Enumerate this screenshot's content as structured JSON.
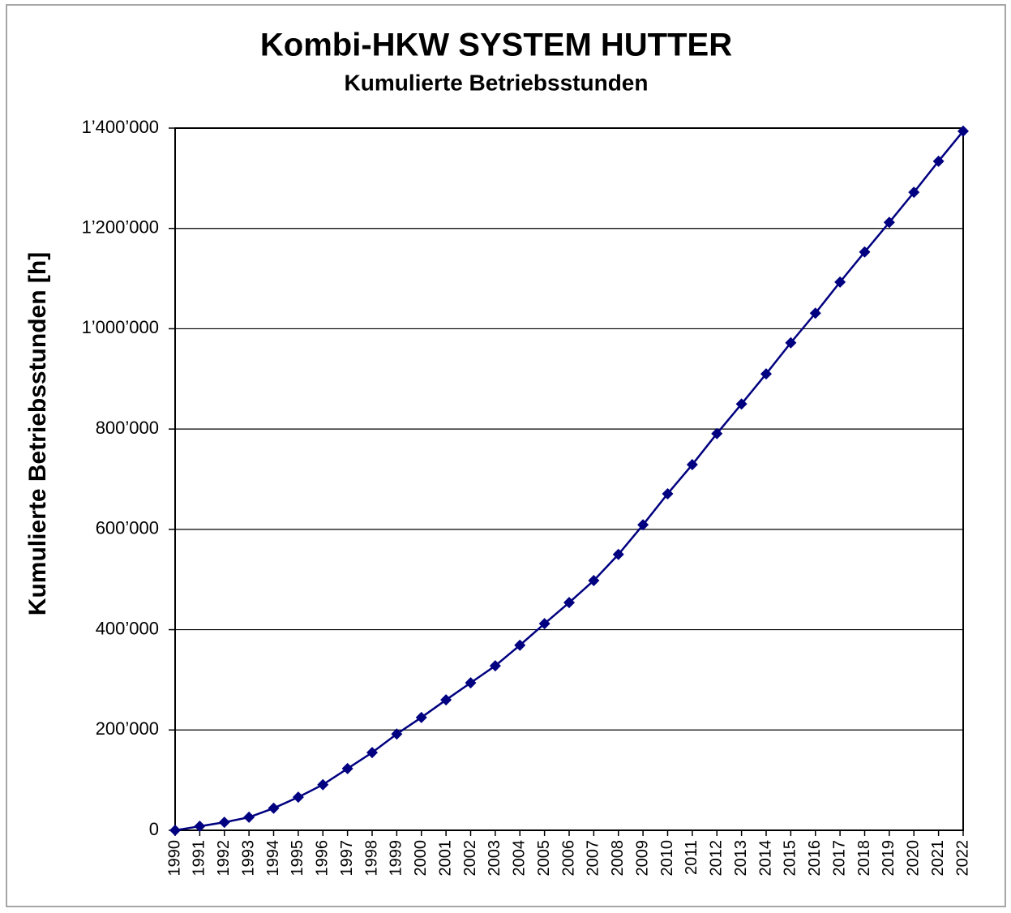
{
  "chart_data": {
    "type": "line",
    "title": "Kombi-HKW SYSTEM HUTTER",
    "subtitle": "Kumulierte Betriebsstunden",
    "y_label": "Kumulierte Betriebsstunden [h]",
    "categories": [
      "1990",
      "1991",
      "1992",
      "1993",
      "1994",
      "1995",
      "1996",
      "1997",
      "1998",
      "1999",
      "2000",
      "2001",
      "2002",
      "2003",
      "2004",
      "2005",
      "2006",
      "2007",
      "2008",
      "2009",
      "2010",
      "2011",
      "2012",
      "2013",
      "2014",
      "2015",
      "2016",
      "2017",
      "2018",
      "2019",
      "2020",
      "2021",
      "2022"
    ],
    "values": [
      0,
      8000,
      16000,
      26000,
      44000,
      66000,
      91000,
      123000,
      155000,
      192000,
      225000,
      260000,
      294000,
      328000,
      369000,
      412000,
      454000,
      498000,
      550000,
      609000,
      671000,
      729000,
      791000,
      850000,
      910000,
      972000,
      1031000,
      1093000,
      1153000,
      1212000,
      1272000,
      1334000,
      1394000
    ],
    "color": "#000080",
    "ylim": [
      0,
      1400000
    ],
    "yticks": [
      0,
      {
        "value": 200000,
        "label": "200’000"
      },
      {
        "value": 400000,
        "label": "400’000"
      },
      {
        "value": 600000,
        "label": "600’000"
      },
      {
        "value": 800000,
        "label": "800’000"
      },
      {
        "value": 1000000,
        "label": "1’000’000"
      },
      {
        "value": 1200000,
        "label": "1’200’000"
      },
      {
        "value": 1400000,
        "label": "1’400’000"
      }
    ],
    "grid": true
  }
}
